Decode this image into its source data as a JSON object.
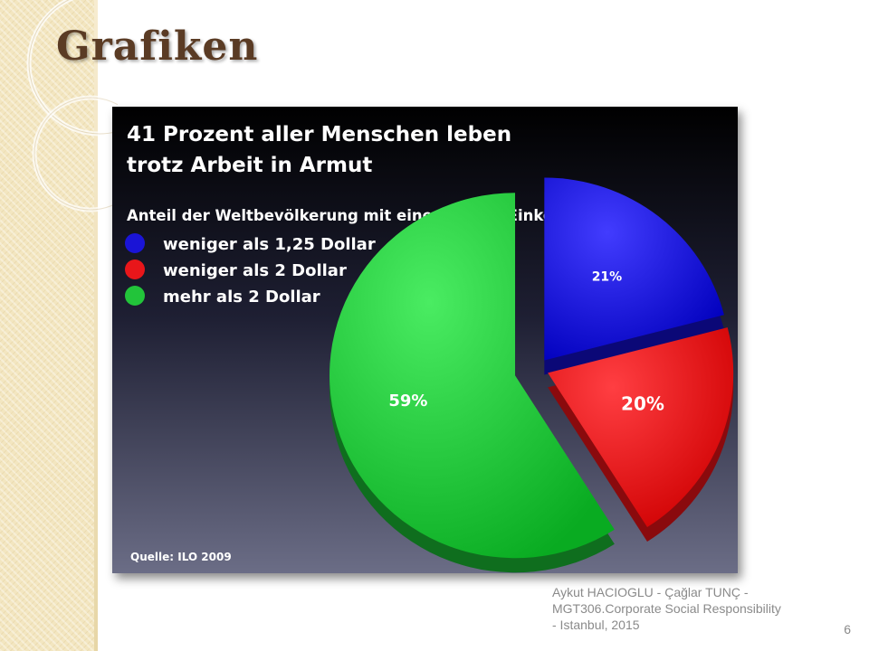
{
  "slide": {
    "title": "Grafiken",
    "footer": "Aykut HACIOGLU - Çağlar TUNÇ - MGT306.Corporate Social Responsibility - Istanbul, 2015",
    "page_number": "6"
  },
  "colors": {
    "accent_brown": "#5a3b24",
    "strip": "#f3e6c0",
    "blue": "#1a14d6",
    "red": "#e8161a",
    "green": "#22c43a"
  },
  "chart_data": {
    "type": "pie",
    "title": "41 Prozent aller Menschen leben trotz Arbeit in Armut",
    "title_line1": "41 Prozent aller Menschen leben",
    "title_line2": "trotz Arbeit in Armut",
    "subtitle": "Anteil der Weltbevölkerung mit einem Tages-Einkommen von...",
    "source": "Quelle: ILO 2009",
    "legend_position": "top-left",
    "slices": [
      {
        "name": "weniger als 1,25 Dollar",
        "value": 21,
        "label": "21%",
        "color": "#1a14d6"
      },
      {
        "name": "weniger als 2 Dollar",
        "value": 20,
        "label": "20%",
        "color": "#e8161a"
      },
      {
        "name": "mehr als 2 Dollar",
        "value": 59,
        "label": "59%",
        "color": "#22c43a"
      }
    ]
  }
}
